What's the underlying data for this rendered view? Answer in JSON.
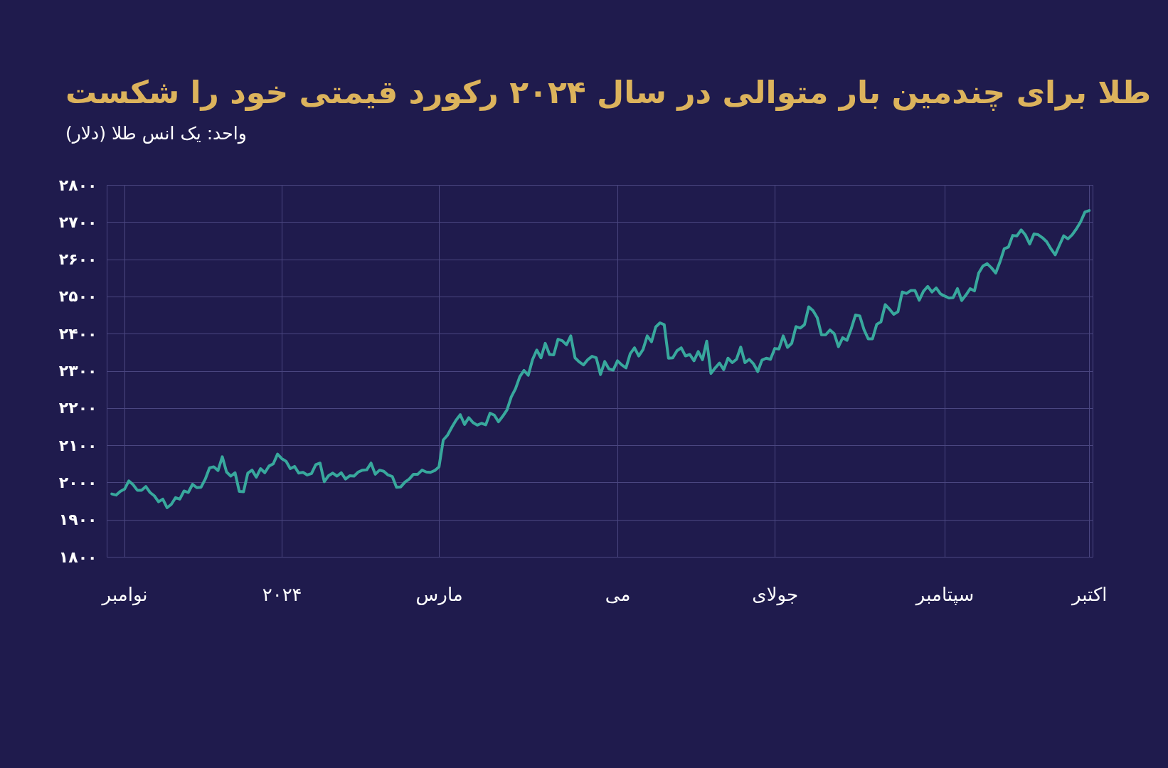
{
  "chart_data": {
    "type": "line",
    "title": "طلا برای چندمین بار متوالی در سال ۲۰۲۴ رکورد قیمتی خود را شکست",
    "subtitle": "واحد: یک انس طلا (دلار)",
    "categories": [
      null,
      null,
      null,
      "نوامبر",
      null,
      null,
      null,
      null,
      null,
      null,
      null,
      null,
      null,
      null,
      null,
      null,
      null,
      null,
      null,
      null,
      null,
      null,
      null,
      null,
      null,
      null,
      null,
      null,
      null,
      null,
      null,
      null,
      null,
      null,
      null,
      null,
      null,
      null,
      null,
      null,
      "۲۰۲۴",
      null,
      null,
      null,
      null,
      null,
      null,
      null,
      null,
      null,
      null,
      null,
      null,
      null,
      null,
      null,
      null,
      null,
      null,
      null,
      null,
      null,
      null,
      null,
      null,
      null,
      null,
      null,
      null,
      null,
      null,
      null,
      null,
      null,
      null,
      null,
      null,
      "مارس",
      null,
      null,
      null,
      null,
      null,
      null,
      null,
      null,
      null,
      null,
      null,
      null,
      null,
      null,
      null,
      null,
      null,
      null,
      null,
      null,
      null,
      null,
      null,
      null,
      null,
      null,
      null,
      null,
      null,
      null,
      null,
      null,
      null,
      null,
      null,
      null,
      null,
      null,
      null,
      null,
      null,
      "می",
      null,
      null,
      null,
      null,
      null,
      null,
      null,
      null,
      null,
      null,
      null,
      null,
      null,
      null,
      null,
      null,
      null,
      null,
      null,
      null,
      null,
      null,
      null,
      null,
      null,
      null,
      null,
      null,
      null,
      null,
      null,
      null,
      null,
      null,
      null,
      null,
      "جولای",
      null,
      null,
      null,
      null,
      null,
      null,
      null,
      null,
      null,
      null,
      null,
      null,
      null,
      null,
      null,
      null,
      null,
      null,
      null,
      null,
      null,
      null,
      null,
      null,
      null,
      null,
      null,
      null,
      null,
      null,
      null,
      null,
      null,
      null,
      null,
      null,
      null,
      null,
      null,
      "سپتامبر",
      null,
      null,
      null,
      null,
      null,
      null,
      null,
      null,
      null,
      null,
      null,
      null,
      null,
      null,
      null,
      null,
      null,
      null,
      null,
      null,
      null,
      null,
      null,
      null,
      null,
      null,
      null,
      null,
      null,
      null,
      null,
      null,
      null,
      "اکتبر"
    ],
    "series": [
      {
        "color": "#38a89d",
        "values": [
          1969,
          1966,
          1976,
          1982,
          2004,
          1994,
          1979,
          1979,
          1989,
          1973,
          1964,
          1948,
          1955,
          1932,
          1941,
          1959,
          1955,
          1977,
          1973,
          1995,
          1986,
          1987,
          2009,
          2039,
          2042,
          2032,
          2069,
          2028,
          2017,
          2026,
          1976,
          1975,
          2025,
          2033,
          2014,
          2037,
          2026,
          2044,
          2050,
          2076,
          2064,
          2057,
          2037,
          2043,
          2025,
          2027,
          2020,
          2024,
          2048,
          2052,
          2002,
          2018,
          2025,
          2017,
          2026,
          2009,
          2018,
          2017,
          2028,
          2033,
          2034,
          2052,
          2022,
          2033,
          2030,
          2020,
          2016,
          1987,
          1988,
          2001,
          2009,
          2022,
          2022,
          2033,
          2028,
          2027,
          2032,
          2042,
          2114,
          2127,
          2148,
          2167,
          2182,
          2156,
          2174,
          2161,
          2154,
          2159,
          2155,
          2186,
          2181,
          2163,
          2178,
          2195,
          2230,
          2252,
          2284,
          2301,
          2288,
          2330,
          2356,
          2335,
          2374,
          2344,
          2343,
          2385,
          2381,
          2370,
          2394,
          2335,
          2324,
          2316,
          2330,
          2339,
          2335,
          2290,
          2325,
          2305,
          2302,
          2327,
          2316,
          2308,
          2346,
          2362,
          2340,
          2357,
          2394,
          2378,
          2418,
          2429,
          2424,
          2334,
          2335,
          2354,
          2362,
          2340,
          2344,
          2327,
          2352,
          2330,
          2380,
          2293,
          2308,
          2321,
          2303,
          2334,
          2322,
          2331,
          2364,
          2322,
          2331,
          2319,
          2298,
          2329,
          2334,
          2331,
          2360,
          2359,
          2394,
          2363,
          2374,
          2419,
          2415,
          2424,
          2472,
          2462,
          2443,
          2397,
          2397,
          2410,
          2400,
          2365,
          2389,
          2382,
          2413,
          2450,
          2448,
          2411,
          2386,
          2386,
          2425,
          2432,
          2478,
          2466,
          2452,
          2459,
          2512,
          2508,
          2516,
          2516,
          2490,
          2514,
          2527,
          2512,
          2523,
          2507,
          2501,
          2496,
          2497,
          2521,
          2489,
          2504,
          2521,
          2515,
          2563,
          2582,
          2588,
          2577,
          2563,
          2593,
          2628,
          2633,
          2664,
          2663,
          2679,
          2665,
          2641,
          2668,
          2666,
          2658,
          2647,
          2628,
          2612,
          2638,
          2663,
          2655,
          2666,
          2682,
          2701,
          2727,
          2731
        ]
      }
    ],
    "ylim": [
      1800,
      2800
    ],
    "yticks": [
      {
        "value": 1800,
        "label": "۱۸۰۰"
      },
      {
        "value": 1900,
        "label": "۱۹۰۰"
      },
      {
        "value": 2000,
        "label": "۲۰۰۰"
      },
      {
        "value": 2100,
        "label": "۲۱۰۰"
      },
      {
        "value": 2200,
        "label": "۲۲۰۰"
      },
      {
        "value": 2300,
        "label": "۲۳۰۰"
      },
      {
        "value": 2400,
        "label": "۲۴۰۰"
      },
      {
        "value": 2500,
        "label": "۲۵۰۰"
      },
      {
        "value": 2600,
        "label": "۲۶۰۰"
      },
      {
        "value": 2700,
        "label": "۲۷۰۰"
      },
      {
        "value": 2800,
        "label": "۲۸۰۰"
      }
    ],
    "grid": true,
    "line_style": "solid"
  }
}
